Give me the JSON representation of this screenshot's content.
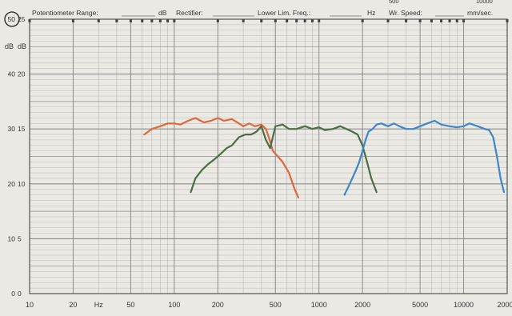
{
  "header": {
    "potentiometer_label": "Potentiometer Range:",
    "potentiometer_unit": "dB",
    "rectifier_label": "Rectifier:",
    "lower_lim_label": "Lower Lim. Freq.:",
    "lower_lim_unit": "Hz",
    "speed_label": "Wr. Speed:",
    "speed_unit": "mm/sec.",
    "top_partial_labels": [
      "500",
      "10000"
    ]
  },
  "colors": {
    "paper": "#ebe9e4",
    "grid": "#8d8d8d",
    "grid_minor": "#b9b9b6",
    "orange": "#e0683a",
    "green": "#4a6e44",
    "blue": "#3f86c8",
    "ink": "#333333"
  },
  "chart_data": {
    "type": "line",
    "xscale": "log",
    "xlim": [
      10,
      20000
    ],
    "ylim": [
      0,
      50
    ],
    "grid": true,
    "x_ticks": [
      {
        "value": 10,
        "label": "10"
      },
      {
        "value": 20,
        "label": "20"
      },
      {
        "value": 30,
        "label": "Hz"
      },
      {
        "value": 50,
        "label": "50"
      },
      {
        "value": 100,
        "label": "100"
      },
      {
        "value": 200,
        "label": "200"
      },
      {
        "value": 500,
        "label": "500"
      },
      {
        "value": 1000,
        "label": "1000"
      },
      {
        "value": 2000,
        "label": "2000"
      },
      {
        "value": 5000,
        "label": "5000"
      },
      {
        "value": 10000,
        "label": "10000"
      },
      {
        "value": 20000,
        "label": "20000"
      }
    ],
    "y_ticks_left": [
      {
        "value": 50,
        "label": "50"
      },
      {
        "value": 40,
        "label": "40"
      },
      {
        "value": 30,
        "label": "30"
      },
      {
        "value": 20,
        "label": "20"
      },
      {
        "value": 10,
        "label": "10"
      },
      {
        "value": 0,
        "label": "0"
      }
    ],
    "y_ticks_right": [
      {
        "value": 50,
        "label": "25"
      },
      {
        "value": 40,
        "label": "20"
      },
      {
        "value": 30,
        "label": "15"
      },
      {
        "value": 20,
        "label": "10"
      },
      {
        "value": 10,
        "label": "5"
      },
      {
        "value": 0,
        "label": "0"
      }
    ],
    "ylabel_left": "dB",
    "ylabel_right": "dB",
    "series": [
      {
        "color": "#e0683a",
        "x": [
          62,
          70,
          80,
          90,
          100,
          110,
          125,
          140,
          160,
          180,
          200,
          220,
          250,
          280,
          300,
          330,
          360,
          400,
          430,
          450,
          480,
          520,
          560,
          620,
          680,
          720
        ],
        "y": [
          29.0,
          30.0,
          30.5,
          31.0,
          31.0,
          30.8,
          31.5,
          32.0,
          31.2,
          31.5,
          32.0,
          31.5,
          31.8,
          31.0,
          30.5,
          31.0,
          30.5,
          30.8,
          30.0,
          28.5,
          26.0,
          25.0,
          24.0,
          22.0,
          19.0,
          17.5
        ]
      },
      {
        "color": "#4a6e44",
        "x": [
          130,
          140,
          155,
          170,
          190,
          210,
          230,
          250,
          280,
          310,
          340,
          370,
          400,
          430,
          460,
          500,
          560,
          620,
          700,
          800,
          900,
          1000,
          1100,
          1250,
          1400,
          1550,
          1700,
          1850,
          2000,
          2150,
          2300,
          2500
        ],
        "y": [
          18.5,
          21.0,
          22.5,
          23.5,
          24.5,
          25.5,
          26.5,
          27.0,
          28.5,
          29.0,
          29.0,
          29.5,
          30.5,
          28.0,
          26.5,
          30.5,
          30.8,
          30.0,
          30.0,
          30.5,
          30.0,
          30.3,
          29.8,
          30.0,
          30.5,
          30.0,
          29.5,
          29.0,
          27.0,
          24.0,
          21.0,
          18.5
        ]
      },
      {
        "color": "#3f86c8",
        "x": [
          1500,
          1600,
          1700,
          1800,
          1900,
          2000,
          2100,
          2200,
          2350,
          2500,
          2700,
          3000,
          3300,
          3600,
          4000,
          4500,
          5000,
          5600,
          6300,
          7000,
          8000,
          9000,
          10000,
          11000,
          12500,
          14000,
          15000,
          16000,
          17000,
          18000,
          19000
        ],
        "y": [
          18.0,
          19.5,
          21.0,
          22.5,
          24.0,
          26.0,
          28.0,
          29.5,
          30.0,
          30.8,
          31.0,
          30.5,
          31.0,
          30.5,
          30.0,
          30.0,
          30.5,
          31.0,
          31.5,
          30.8,
          30.5,
          30.3,
          30.5,
          31.0,
          30.5,
          30.0,
          29.8,
          28.5,
          25.0,
          21.0,
          18.5
        ]
      }
    ]
  }
}
